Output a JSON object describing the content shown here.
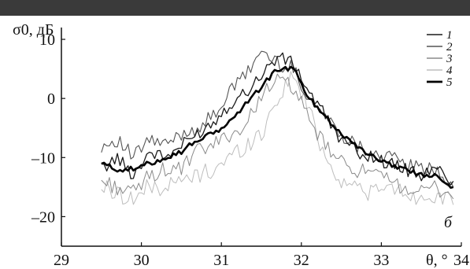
{
  "chart_data": {
    "type": "line",
    "title": "",
    "xlabel": "θ, °",
    "ylabel": "σ0, дБ",
    "panel_label": "б",
    "xlim": [
      29,
      34
    ],
    "ylim": [
      -25,
      12
    ],
    "x_ticks": [
      "29",
      "30",
      "31",
      "32",
      "33",
      "34"
    ],
    "y_ticks": [
      "10",
      "0",
      "–10",
      "–20"
    ],
    "grid": false,
    "legend": {
      "position": "top-right",
      "entries": [
        "1",
        "2",
        "3",
        "4",
        "5"
      ]
    },
    "colors": [
      "#1a1a1a",
      "#555555",
      "#8a8a8a",
      "#bdbdbd",
      "#000000"
    ],
    "series": [
      {
        "name": "1",
        "x": [
          29.5,
          29.7,
          29.9,
          30.1,
          30.3,
          30.5,
          30.7,
          30.9,
          31.1,
          31.3,
          31.5,
          31.7,
          31.9,
          32.1,
          32.3,
          32.5,
          32.7,
          32.9,
          33.1,
          33.3,
          33.5,
          33.7,
          33.9
        ],
        "y": [
          -12,
          -10,
          -13,
          -9,
          -10,
          -8,
          -6,
          -4,
          -1,
          1,
          4,
          7,
          6,
          1,
          -3,
          -7,
          -9,
          -10,
          -11,
          -12,
          -13,
          -12,
          -14
        ]
      },
      {
        "name": "2",
        "x": [
          29.5,
          29.7,
          29.9,
          30.1,
          30.3,
          30.5,
          30.7,
          30.9,
          31.1,
          31.3,
          31.5,
          31.7,
          31.9,
          32.1,
          32.3,
          32.5,
          32.7,
          32.9,
          33.1,
          33.3,
          33.5,
          33.7,
          33.9
        ],
        "y": [
          -8,
          -7,
          -10,
          -7,
          -8,
          -6,
          -5,
          -3,
          1,
          4,
          8,
          6,
          5,
          0,
          -3,
          -6,
          -8,
          -9,
          -10,
          -11,
          -12,
          -12,
          -15
        ]
      },
      {
        "name": "3",
        "x": [
          29.5,
          29.7,
          29.9,
          30.1,
          30.3,
          30.5,
          30.7,
          30.9,
          31.1,
          31.3,
          31.5,
          31.7,
          31.9,
          32.1,
          32.3,
          32.5,
          32.7,
          32.9,
          33.1,
          33.3,
          33.5,
          33.7,
          33.9
        ],
        "y": [
          -14,
          -15,
          -16,
          -13,
          -12,
          -12,
          -9,
          -8,
          -6,
          -5,
          1,
          3,
          2,
          -4,
          -8,
          -11,
          -12,
          -13,
          -14,
          -15,
          -16,
          -15,
          -17
        ]
      },
      {
        "name": "4",
        "x": [
          29.5,
          29.7,
          29.9,
          30.1,
          30.3,
          30.5,
          30.7,
          30.9,
          31.1,
          31.3,
          31.5,
          31.7,
          31.9,
          32.1,
          32.3,
          32.5,
          32.7,
          32.9,
          33.1,
          33.3,
          33.5,
          33.7,
          33.9
        ],
        "y": [
          -15,
          -16,
          -17,
          -15,
          -15,
          -14,
          -13,
          -12,
          -10,
          -8,
          -6,
          0,
          4,
          -2,
          -10,
          -14,
          -15,
          -16,
          -15,
          -16,
          -17,
          -16,
          -18
        ]
      },
      {
        "name": "5",
        "x": [
          29.5,
          29.7,
          29.9,
          30.1,
          30.3,
          30.5,
          30.7,
          30.9,
          31.1,
          31.3,
          31.5,
          31.7,
          31.9,
          32.1,
          32.3,
          32.5,
          32.7,
          32.9,
          33.1,
          33.3,
          33.5,
          33.7,
          33.9
        ],
        "y": [
          -11,
          -12,
          -12,
          -11,
          -10,
          -9,
          -7,
          -6,
          -4,
          -1,
          2,
          5,
          5,
          0,
          -3,
          -6,
          -8,
          -10,
          -11,
          -12,
          -13,
          -13,
          -15
        ]
      }
    ]
  }
}
